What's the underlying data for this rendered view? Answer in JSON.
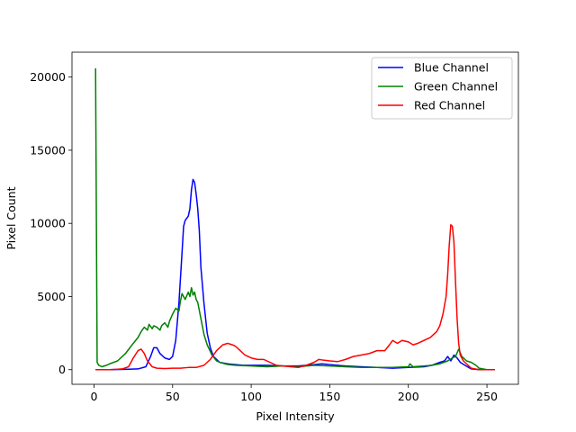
{
  "chart_data": {
    "type": "line",
    "title": "",
    "xlabel": "Pixel Intensity",
    "ylabel": "Pixel Count",
    "xlim": [
      -14,
      270
    ],
    "ylim": [
      -1000,
      21700
    ],
    "x_ticks": [
      0,
      50,
      100,
      150,
      200,
      250
    ],
    "y_ticks": [
      0,
      5000,
      10000,
      15000,
      20000
    ],
    "grid": false,
    "legend_position": "top-right",
    "series": [
      {
        "name": "Blue Channel",
        "color": "#0000ff",
        "points": [
          [
            1,
            0
          ],
          [
            10,
            0
          ],
          [
            20,
            20
          ],
          [
            28,
            50
          ],
          [
            33,
            200
          ],
          [
            36,
            900
          ],
          [
            38,
            1500
          ],
          [
            40,
            1500
          ],
          [
            42,
            1100
          ],
          [
            45,
            800
          ],
          [
            48,
            700
          ],
          [
            50,
            900
          ],
          [
            52,
            2000
          ],
          [
            54,
            4500
          ],
          [
            56,
            8000
          ],
          [
            57,
            9800
          ],
          [
            58,
            10200
          ],
          [
            60,
            10500
          ],
          [
            61,
            11000
          ],
          [
            62,
            12300
          ],
          [
            63,
            13000
          ],
          [
            64,
            12800
          ],
          [
            65,
            12000
          ],
          [
            66,
            11000
          ],
          [
            67,
            9500
          ],
          [
            68,
            7000
          ],
          [
            70,
            4500
          ],
          [
            72,
            2500
          ],
          [
            74,
            1500
          ],
          [
            76,
            900
          ],
          [
            78,
            700
          ],
          [
            80,
            500
          ],
          [
            85,
            400
          ],
          [
            90,
            350
          ],
          [
            95,
            300
          ],
          [
            100,
            300
          ],
          [
            110,
            300
          ],
          [
            120,
            250
          ],
          [
            130,
            250
          ],
          [
            140,
            350
          ],
          [
            145,
            400
          ],
          [
            150,
            350
          ],
          [
            160,
            250
          ],
          [
            170,
            200
          ],
          [
            180,
            150
          ],
          [
            190,
            100
          ],
          [
            200,
            150
          ],
          [
            210,
            200
          ],
          [
            215,
            300
          ],
          [
            220,
            500
          ],
          [
            223,
            600
          ],
          [
            225,
            900
          ],
          [
            227,
            600
          ],
          [
            229,
            1000
          ],
          [
            231,
            800
          ],
          [
            233,
            500
          ],
          [
            236,
            300
          ],
          [
            240,
            50
          ],
          [
            245,
            0
          ],
          [
            255,
            0
          ]
        ]
      },
      {
        "name": "Green Channel",
        "color": "#008000",
        "points": [
          [
            1,
            20600
          ],
          [
            2,
            500
          ],
          [
            3,
            300
          ],
          [
            5,
            200
          ],
          [
            8,
            300
          ],
          [
            10,
            400
          ],
          [
            15,
            600
          ],
          [
            20,
            1100
          ],
          [
            25,
            1800
          ],
          [
            28,
            2200
          ],
          [
            30,
            2600
          ],
          [
            32,
            2900
          ],
          [
            34,
            2700
          ],
          [
            35,
            3100
          ],
          [
            37,
            2800
          ],
          [
            38,
            3000
          ],
          [
            40,
            2900
          ],
          [
            42,
            2700
          ],
          [
            43,
            3000
          ],
          [
            45,
            3200
          ],
          [
            47,
            2900
          ],
          [
            48,
            3300
          ],
          [
            50,
            3800
          ],
          [
            52,
            4200
          ],
          [
            54,
            4000
          ],
          [
            55,
            4700
          ],
          [
            56,
            5200
          ],
          [
            58,
            4800
          ],
          [
            60,
            5300
          ],
          [
            61,
            5000
          ],
          [
            62,
            5600
          ],
          [
            63,
            5100
          ],
          [
            64,
            5300
          ],
          [
            65,
            4800
          ],
          [
            66,
            4600
          ],
          [
            68,
            3500
          ],
          [
            70,
            2400
          ],
          [
            72,
            1700
          ],
          [
            75,
            1000
          ],
          [
            78,
            600
          ],
          [
            80,
            500
          ],
          [
            85,
            350
          ],
          [
            90,
            300
          ],
          [
            100,
            250
          ],
          [
            110,
            200
          ],
          [
            120,
            250
          ],
          [
            130,
            200
          ],
          [
            140,
            300
          ],
          [
            150,
            250
          ],
          [
            160,
            200
          ],
          [
            170,
            150
          ],
          [
            180,
            150
          ],
          [
            190,
            150
          ],
          [
            200,
            200
          ],
          [
            201,
            400
          ],
          [
            203,
            200
          ],
          [
            210,
            250
          ],
          [
            215,
            300
          ],
          [
            220,
            400
          ],
          [
            225,
            600
          ],
          [
            228,
            800
          ],
          [
            230,
            900
          ],
          [
            232,
            1400
          ],
          [
            234,
            900
          ],
          [
            237,
            600
          ],
          [
            240,
            500
          ],
          [
            243,
            300
          ],
          [
            245,
            100
          ],
          [
            250,
            0
          ],
          [
            255,
            0
          ]
        ]
      },
      {
        "name": "Red Channel",
        "color": "#ff0000",
        "points": [
          [
            1,
            0
          ],
          [
            10,
            0
          ],
          [
            18,
            50
          ],
          [
            22,
            200
          ],
          [
            25,
            800
          ],
          [
            28,
            1300
          ],
          [
            30,
            1400
          ],
          [
            32,
            1100
          ],
          [
            34,
            600
          ],
          [
            37,
            200
          ],
          [
            40,
            100
          ],
          [
            45,
            80
          ],
          [
            50,
            100
          ],
          [
            55,
            100
          ],
          [
            60,
            150
          ],
          [
            65,
            150
          ],
          [
            70,
            300
          ],
          [
            74,
            700
          ],
          [
            78,
            1300
          ],
          [
            82,
            1700
          ],
          [
            85,
            1800
          ],
          [
            88,
            1700
          ],
          [
            90,
            1600
          ],
          [
            93,
            1300
          ],
          [
            96,
            1000
          ],
          [
            100,
            800
          ],
          [
            104,
            700
          ],
          [
            108,
            700
          ],
          [
            112,
            500
          ],
          [
            116,
            300
          ],
          [
            120,
            250
          ],
          [
            125,
            200
          ],
          [
            130,
            150
          ],
          [
            135,
            300
          ],
          [
            140,
            500
          ],
          [
            143,
            700
          ],
          [
            146,
            650
          ],
          [
            150,
            600
          ],
          [
            155,
            550
          ],
          [
            160,
            700
          ],
          [
            165,
            900
          ],
          [
            170,
            1000
          ],
          [
            175,
            1100
          ],
          [
            180,
            1300
          ],
          [
            185,
            1300
          ],
          [
            188,
            1700
          ],
          [
            190,
            2000
          ],
          [
            193,
            1800
          ],
          [
            196,
            2000
          ],
          [
            200,
            1900
          ],
          [
            203,
            1700
          ],
          [
            206,
            1800
          ],
          [
            210,
            2000
          ],
          [
            214,
            2200
          ],
          [
            218,
            2600
          ],
          [
            220,
            3000
          ],
          [
            222,
            3800
          ],
          [
            224,
            5000
          ],
          [
            225,
            6500
          ],
          [
            226,
            8500
          ],
          [
            227,
            9900
          ],
          [
            228,
            9800
          ],
          [
            229,
            8700
          ],
          [
            230,
            6000
          ],
          [
            231,
            3500
          ],
          [
            232,
            1800
          ],
          [
            233,
            1000
          ],
          [
            235,
            600
          ],
          [
            238,
            300
          ],
          [
            240,
            100
          ],
          [
            245,
            0
          ],
          [
            255,
            0
          ]
        ]
      }
    ]
  }
}
